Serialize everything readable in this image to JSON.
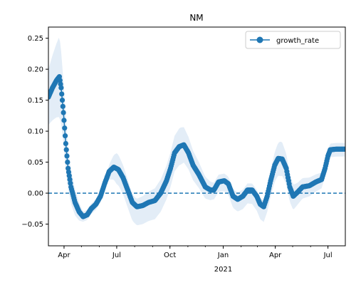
{
  "chart_data": {
    "type": "line",
    "title": "NM",
    "xlabel": "",
    "ylabel": "",
    "x_axis": {
      "type": "date",
      "range": [
        "2020-03-05",
        "2021-07-31"
      ],
      "tick_labels": [
        {
          "date": "2020-04-01",
          "label": "Apr"
        },
        {
          "date": "2020-07-01",
          "label": "Jul"
        },
        {
          "date": "2020-10-01",
          "label": "Oct"
        },
        {
          "date": "2021-01-01",
          "label": "Jan"
        },
        {
          "date": "2021-04-01",
          "label": "Apr"
        },
        {
          "date": "2021-07-01",
          "label": "Jul"
        }
      ],
      "year_label": {
        "date": "2021-01-01",
        "label": "2021"
      }
    },
    "y_axis": {
      "range": [
        -0.085,
        0.268
      ],
      "ticks": [
        -0.05,
        0.0,
        0.05,
        0.1,
        0.15,
        0.2,
        0.25
      ],
      "tick_labels": [
        "−0.05",
        "0.00",
        "0.05",
        "0.10",
        "0.15",
        "0.20",
        "0.25"
      ]
    },
    "reference_line": {
      "y": 0.0,
      "style": "dashed",
      "color": "#1f77b4"
    },
    "legend": {
      "position": "top-right",
      "entries": [
        "growth_rate"
      ]
    },
    "colors": {
      "series": "#1f77b4",
      "band": "#dce9f5"
    },
    "series": [
      {
        "name": "growth_rate",
        "points": [
          [
            "2020-03-05",
            0.155
          ],
          [
            "2020-03-12",
            0.17
          ],
          [
            "2020-03-19",
            0.182
          ],
          [
            "2020-03-24",
            0.188
          ],
          [
            "2020-03-27",
            0.17
          ],
          [
            "2020-03-31",
            0.13
          ],
          [
            "2020-04-04",
            0.08
          ],
          [
            "2020-04-08",
            0.04
          ],
          [
            "2020-04-13",
            0.01
          ],
          [
            "2020-04-20",
            -0.015
          ],
          [
            "2020-04-27",
            -0.03
          ],
          [
            "2020-05-04",
            -0.038
          ],
          [
            "2020-05-11",
            -0.035
          ],
          [
            "2020-05-18",
            -0.025
          ],
          [
            "2020-05-26",
            -0.018
          ],
          [
            "2020-06-03",
            -0.005
          ],
          [
            "2020-06-10",
            0.015
          ],
          [
            "2020-06-18",
            0.035
          ],
          [
            "2020-06-26",
            0.042
          ],
          [
            "2020-07-04",
            0.038
          ],
          [
            "2020-07-12",
            0.025
          ],
          [
            "2020-07-20",
            0.005
          ],
          [
            "2020-07-28",
            -0.015
          ],
          [
            "2020-08-05",
            -0.022
          ],
          [
            "2020-08-15",
            -0.02
          ],
          [
            "2020-08-25",
            -0.015
          ],
          [
            "2020-09-05",
            -0.012
          ],
          [
            "2020-09-15",
            0.0
          ],
          [
            "2020-09-25",
            0.02
          ],
          [
            "2020-10-02",
            0.04
          ],
          [
            "2020-10-09",
            0.065
          ],
          [
            "2020-10-17",
            0.075
          ],
          [
            "2020-10-25",
            0.078
          ],
          [
            "2020-11-02",
            0.065
          ],
          [
            "2020-11-10",
            0.045
          ],
          [
            "2020-11-20",
            0.03
          ],
          [
            "2020-12-01",
            0.01
          ],
          [
            "2020-12-10",
            0.005
          ],
          [
            "2020-12-16",
            0.005
          ],
          [
            "2020-12-24",
            0.018
          ],
          [
            "2021-01-03",
            0.02
          ],
          [
            "2021-01-10",
            0.015
          ],
          [
            "2021-01-18",
            -0.005
          ],
          [
            "2021-01-26",
            -0.01
          ],
          [
            "2021-02-04",
            -0.005
          ],
          [
            "2021-02-12",
            0.005
          ],
          [
            "2021-02-20",
            0.005
          ],
          [
            "2021-02-28",
            -0.005
          ],
          [
            "2021-03-06",
            -0.018
          ],
          [
            "2021-03-12",
            -0.022
          ],
          [
            "2021-03-18",
            -0.005
          ],
          [
            "2021-03-24",
            0.02
          ],
          [
            "2021-03-31",
            0.045
          ],
          [
            "2021-04-06",
            0.056
          ],
          [
            "2021-04-13",
            0.055
          ],
          [
            "2021-04-20",
            0.04
          ],
          [
            "2021-04-26",
            0.01
          ],
          [
            "2021-05-02",
            -0.005
          ],
          [
            "2021-05-10",
            0.002
          ],
          [
            "2021-05-18",
            0.01
          ],
          [
            "2021-05-30",
            0.012
          ],
          [
            "2021-06-10",
            0.018
          ],
          [
            "2021-06-20",
            0.022
          ],
          [
            "2021-06-26",
            0.04
          ],
          [
            "2021-07-01",
            0.06
          ],
          [
            "2021-07-05",
            0.07
          ],
          [
            "2021-07-15",
            0.071
          ],
          [
            "2021-07-31",
            0.071
          ]
        ]
      }
    ],
    "band": {
      "upper_offset_points": [
        [
          "2020-03-05",
          0.045
        ],
        [
          "2020-03-24",
          0.065
        ],
        [
          "2020-04-10",
          0.03
        ],
        [
          "2020-05-04",
          0.008
        ],
        [
          "2020-06-15",
          0.008
        ],
        [
          "2020-07-01",
          0.025
        ],
        [
          "2020-08-01",
          0.012
        ],
        [
          "2020-10-20",
          0.03
        ],
        [
          "2020-12-15",
          0.012
        ],
        [
          "2021-03-15",
          0.01
        ],
        [
          "2021-04-10",
          0.028
        ],
        [
          "2021-05-10",
          0.015
        ],
        [
          "2021-07-05",
          0.01
        ],
        [
          "2021-07-31",
          0.01
        ]
      ],
      "lower_offset_points": [
        [
          "2020-03-05",
          0.045
        ],
        [
          "2020-03-24",
          0.065
        ],
        [
          "2020-04-10",
          0.03
        ],
        [
          "2020-05-04",
          0.008
        ],
        [
          "2020-06-15",
          0.01
        ],
        [
          "2020-07-01",
          0.025
        ],
        [
          "2020-08-01",
          0.03
        ],
        [
          "2020-10-20",
          0.03
        ],
        [
          "2020-12-15",
          0.015
        ],
        [
          "2021-03-15",
          0.025
        ],
        [
          "2021-04-10",
          0.028
        ],
        [
          "2021-05-10",
          0.02
        ],
        [
          "2021-07-05",
          0.012
        ],
        [
          "2021-07-31",
          0.012
        ]
      ]
    }
  }
}
